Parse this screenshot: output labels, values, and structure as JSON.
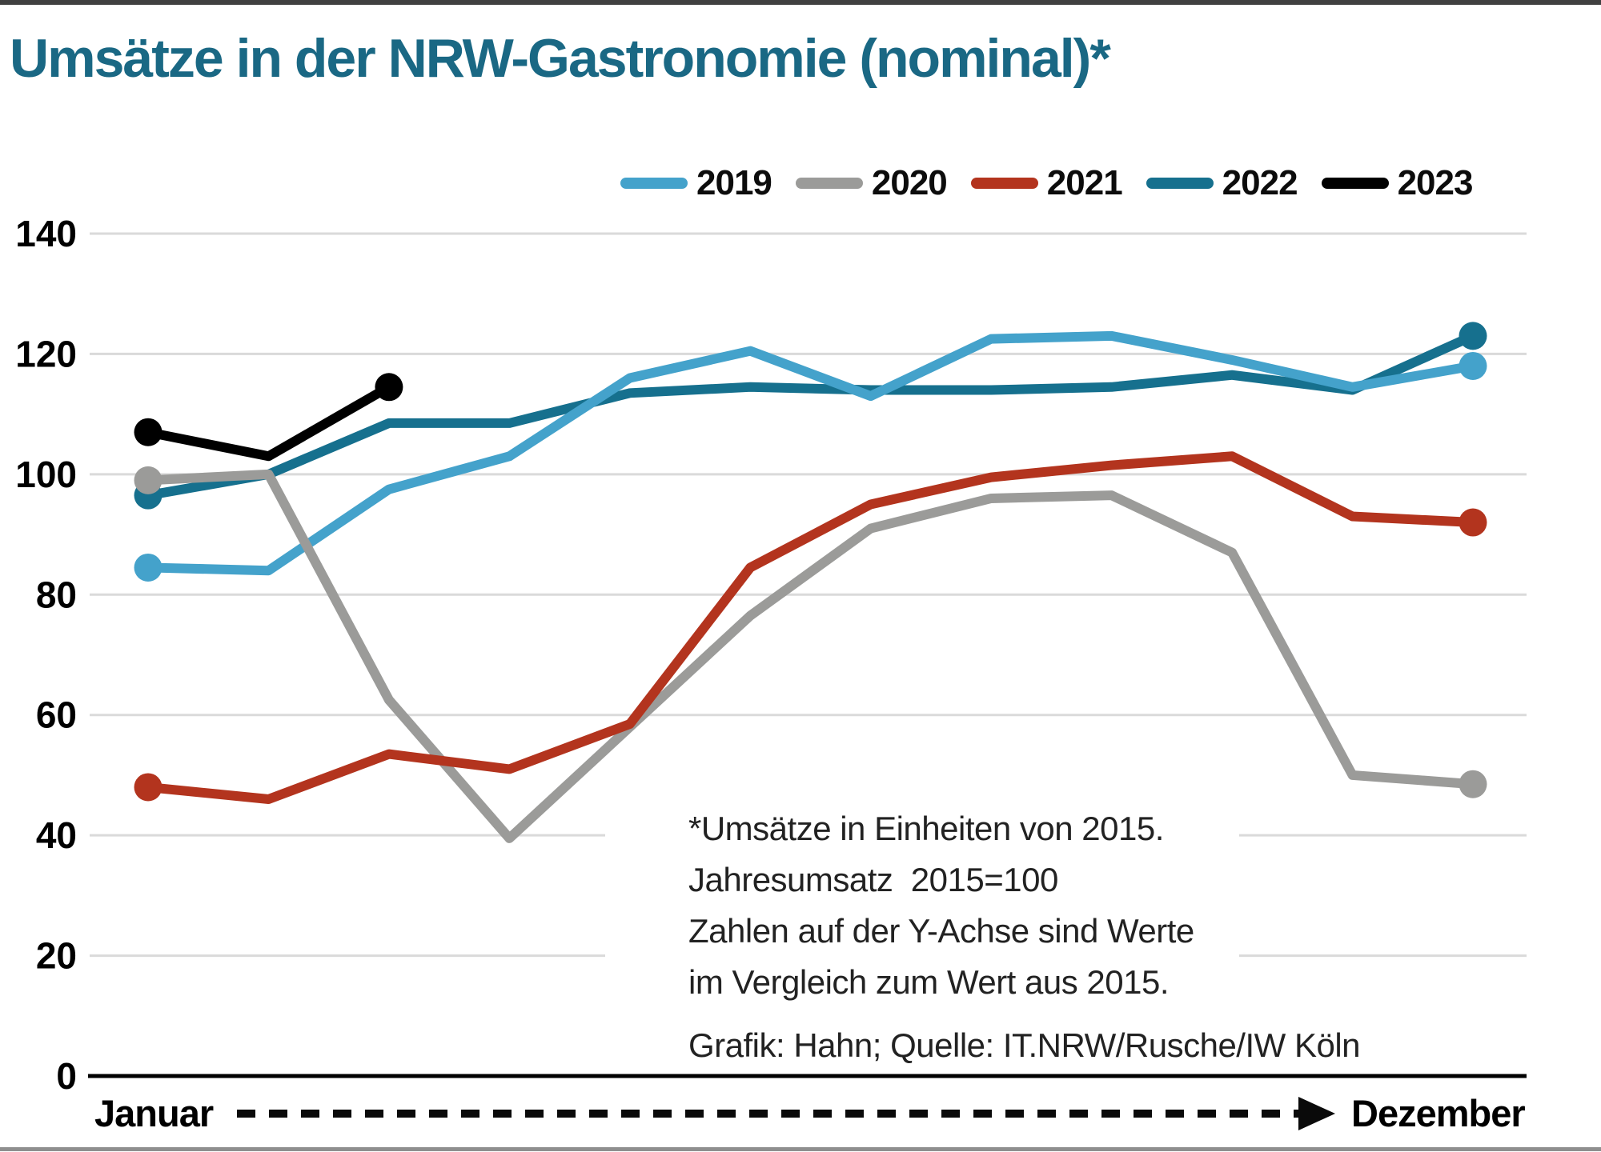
{
  "chart_data": {
    "type": "line",
    "title": "Umsätze in der NRW-Gastronomie (nominal)*",
    "x_axis": {
      "start_label": "Januar",
      "end_label": "Dezember",
      "months": 12
    },
    "y_axis": {
      "ticks": [
        140,
        120,
        100,
        80,
        60,
        40,
        20,
        0
      ],
      "range": [
        0,
        140
      ]
    },
    "grid": true,
    "legend_position": "top-right",
    "series": [
      {
        "name": "2019",
        "color": "#44A2CB",
        "values": [
          84.5,
          84,
          97.5,
          103,
          116,
          120.5,
          113,
          122.5,
          123,
          119,
          114.5,
          118
        ]
      },
      {
        "name": "2020",
        "color": "#9B9B99",
        "values": [
          99,
          100,
          62.5,
          39.5,
          58,
          76.5,
          91,
          96,
          96.5,
          87,
          50,
          48.5
        ]
      },
      {
        "name": "2021",
        "color": "#B3341E",
        "values": [
          48,
          46,
          53.5,
          51,
          58.5,
          84.5,
          95,
          99.5,
          101.5,
          103,
          93,
          92
        ]
      },
      {
        "name": "2022",
        "color": "#16708E",
        "values": [
          96.5,
          100,
          108.5,
          108.5,
          113.5,
          114.5,
          114,
          114,
          114.5,
          116.5,
          114,
          123
        ]
      },
      {
        "name": "2023",
        "color": "#000000",
        "values": [
          107,
          103,
          114.5
        ]
      }
    ],
    "z_order": [
      "2022",
      "2019",
      "2020",
      "2021",
      "2023"
    ]
  },
  "annotation": {
    "lines": [
      "*Umsätze in Einheiten von 2015.",
      "Jahresumsatz  2015=100",
      "Zahlen auf der Y-Achse sind Werte",
      "im Vergleich zum Wert aus 2015."
    ],
    "source": "Grafik: Hahn; Quelle: IT.NRW/Rusche/IW Köln"
  }
}
